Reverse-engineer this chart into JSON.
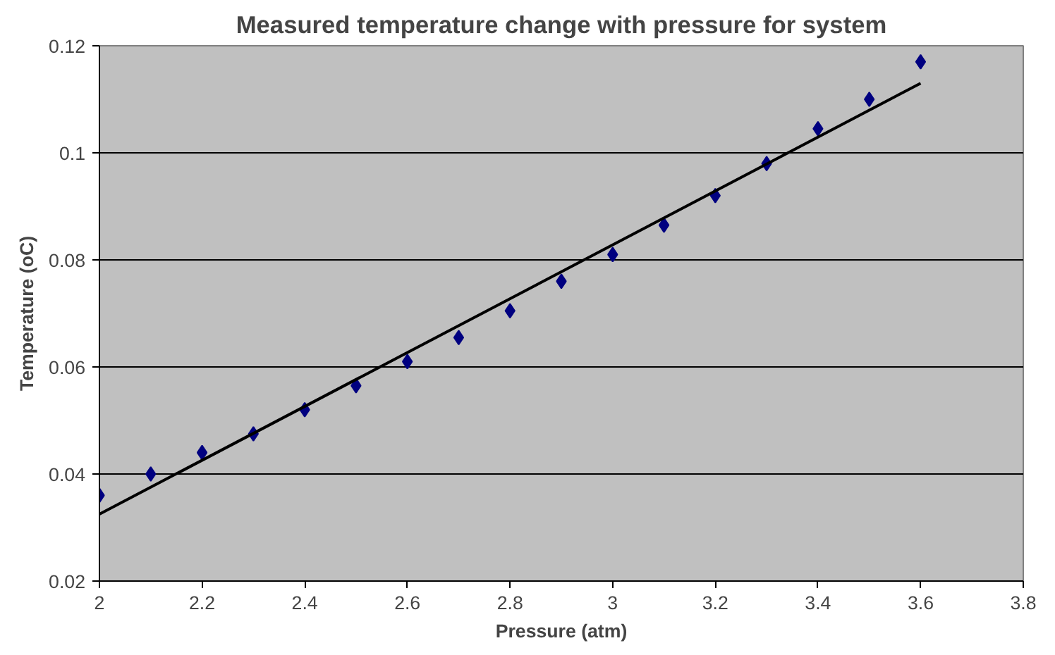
{
  "chart_data": {
    "type": "scatter",
    "title": "Measured temperature change with pressure for system",
    "xlabel": "Pressure (atm)",
    "ylabel": "Temperature (oC)",
    "x": [
      2,
      2.1,
      2.2,
      2.3,
      2.4,
      2.5,
      2.6,
      2.7,
      2.8,
      2.9,
      3,
      3.1,
      3.2,
      3.3,
      3.4,
      3.5,
      3.6
    ],
    "series": [
      {
        "color": "#000080",
        "values": [
          0.036,
          0.04,
          0.044,
          0.0475,
          0.052,
          0.0565,
          0.061,
          0.0655,
          0.0705,
          0.076,
          0.081,
          0.0865,
          0.092,
          0.098,
          0.1045,
          0.11,
          0.117
        ]
      },
      {
        "type": "line",
        "color": "#000000",
        "x": [
          2,
          3.6
        ],
        "values": [
          0.0325,
          0.113
        ],
        "marker": "none"
      }
    ],
    "xlim": [
      2,
      3.8
    ],
    "xticks": [
      2,
      2.2,
      2.4,
      2.6,
      2.8,
      3,
      3.2,
      3.4,
      3.6,
      3.8
    ],
    "ylim": [
      0.02,
      0.12
    ],
    "yticks": [
      0.02,
      0.04,
      0.06,
      0.08,
      0.1,
      0.12
    ],
    "grid": "y",
    "marker": "diamond"
  }
}
